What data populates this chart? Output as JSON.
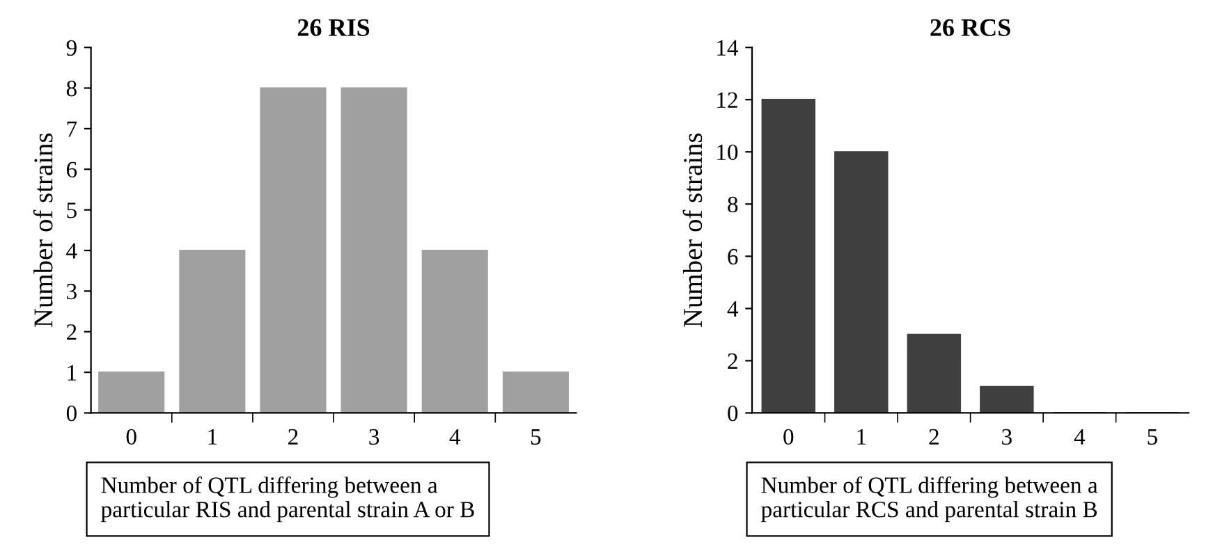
{
  "chart_data": [
    {
      "type": "bar",
      "title": "26 RIS",
      "ylabel": "Number of strains",
      "xlabel": "Number of QTL differing between a\nparticular RIS and parental strain A or B",
      "categories": [
        "0",
        "1",
        "2",
        "3",
        "4",
        "5"
      ],
      "values": [
        1,
        4,
        8,
        8,
        4,
        1
      ],
      "color": "#a0a0a0",
      "ylim": [
        0,
        9
      ],
      "yticks": [
        0,
        1,
        2,
        3,
        4,
        5,
        6,
        7,
        8,
        9
      ],
      "grid": false,
      "legend": false
    },
    {
      "type": "bar",
      "title": "26 RCS",
      "ylabel": "Number of strains",
      "xlabel": "Number of QTL differing between a\nparticular RCS and parental strain B",
      "categories": [
        "0",
        "1",
        "2",
        "3",
        "4",
        "5"
      ],
      "values": [
        12,
        10,
        3,
        1,
        0,
        0
      ],
      "color": "#404040",
      "ylim": [
        0,
        14
      ],
      "yticks": [
        0,
        2,
        4,
        6,
        8,
        10,
        12,
        14
      ],
      "grid": false,
      "legend": false
    }
  ]
}
